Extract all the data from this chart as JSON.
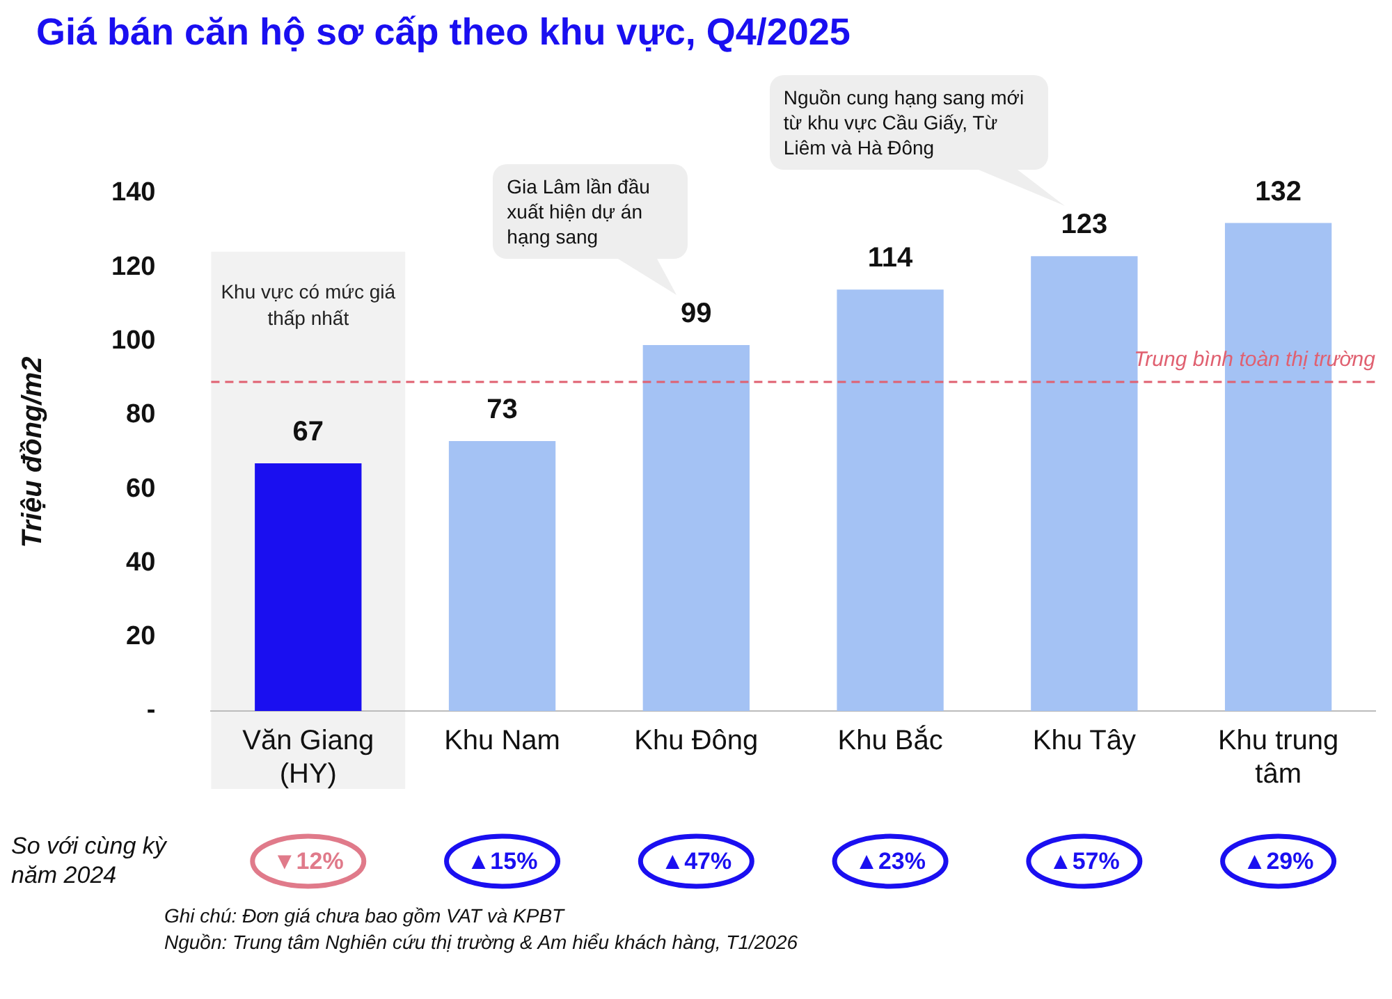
{
  "chart_data": {
    "type": "bar",
    "title": "Giá bán căn hộ sơ cấp theo khu vực, Q4/2025",
    "ylabel": "Triệu đồng/m2",
    "categories": [
      "Văn Giang (HY)",
      "Khu Nam",
      "Khu Đông",
      "Khu Bắc",
      "Khu Tây",
      "Khu trung tâm"
    ],
    "values": [
      67,
      73,
      99,
      114,
      123,
      132
    ],
    "colors": [
      "#1a0ff0",
      "#a4c2f4",
      "#a4c2f4",
      "#a4c2f4",
      "#a4c2f4",
      "#a4c2f4"
    ],
    "data_labels": true,
    "ylim": [
      0,
      140
    ],
    "yticks": [
      {
        "value": 0,
        "label": "-"
      },
      20,
      40,
      60,
      80,
      100,
      120,
      140
    ],
    "grid": false,
    "legend": false,
    "ref_lines": [
      {
        "axis": "y",
        "value": 89,
        "label": "Trung bình toàn thị trường",
        "color": "#e06070",
        "line_style": "dashed"
      }
    ],
    "bands": [
      {
        "axis": "x",
        "from": "Văn Giang (HY)",
        "to": "Văn Giang (HY)",
        "label": "Khu vực có mức giá thấp nhất",
        "color": "#f2f2f2"
      }
    ],
    "annotations": [
      "So với cùng kỳ năm 2024",
      "Ghi chú: Đơn giá chưa bao gồm VAT và KPBT",
      "Nguồn: Trung tâm Nghiên cứu thị trường & Am hiểu khách hàng, T1/2026",
      "Gia Lâm lần đầu xuất hiện dự án hạng sang",
      "Nguồn cung hạng sang mới từ khu vực Cầu Giấy, Từ Liêm và Hà Đông",
      "▼12%",
      "▲15%",
      "▲47%",
      "▲23%",
      "▲57%",
      "▲29%"
    ]
  }
}
